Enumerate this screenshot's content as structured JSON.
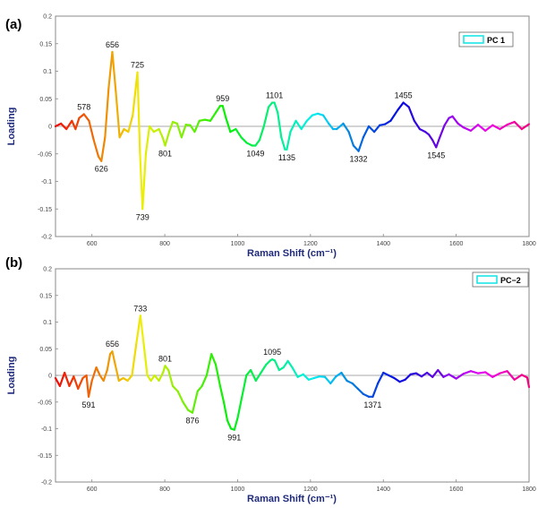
{
  "chart_data": [
    {
      "type": "line",
      "panel_label": "(a)",
      "legend": "PC 1",
      "xlabel": "Raman Shift (cm⁻¹)",
      "ylabel": "Loading",
      "xlim": [
        500,
        1800
      ],
      "ylim": [
        -0.2,
        0.2
      ],
      "xticks": [
        600,
        800,
        1000,
        1200,
        1400,
        1600,
        1800
      ],
      "xtick_labels": [
        "600",
        "800",
        "1000",
        "1200",
        "1400",
        "1600",
        "1800"
      ],
      "yticks": [
        0.2,
        0.15,
        0.1,
        0.05,
        0,
        -0.05,
        -0.1,
        -0.15,
        -0.2
      ],
      "ytick_labels": [
        "0.2",
        "0.15",
        "0.1",
        "0.05",
        "0",
        "-0.05",
        "-0.1",
        "-0.15",
        "-0.2"
      ],
      "series": [
        {
          "x": [
            500,
            515,
            530,
            545,
            555,
            565,
            578,
            592,
            605,
            618,
            626,
            636,
            646,
            656,
            666,
            676,
            688,
            700,
            712,
            725,
            732,
            739,
            748,
            758,
            770,
            784,
            794,
            801,
            812,
            822,
            834,
            846,
            858,
            870,
            882,
            895,
            910,
            925,
            940,
            952,
            959,
            968,
            980,
            995,
            1010,
            1025,
            1040,
            1049,
            1060,
            1072,
            1085,
            1095,
            1101,
            1110,
            1120,
            1130,
            1135,
            1145,
            1160,
            1175,
            1190,
            1205,
            1220,
            1235,
            1250,
            1262,
            1272,
            1290,
            1305,
            1318,
            1332,
            1345,
            1360,
            1375,
            1390,
            1405,
            1420,
            1440,
            1455,
            1470,
            1485,
            1500,
            1515,
            1525,
            1535,
            1545,
            1555,
            1568,
            1580,
            1590,
            1605,
            1620,
            1640,
            1660,
            1680,
            1700,
            1720,
            1740,
            1760,
            1780,
            1800
          ],
          "y": [
            0,
            0.005,
            -0.005,
            0.01,
            -0.005,
            0.015,
            0.022,
            0.01,
            -0.025,
            -0.055,
            -0.063,
            -0.02,
            0.07,
            0.135,
            0.06,
            -0.02,
            -0.005,
            -0.01,
            0.02,
            0.098,
            -0.05,
            -0.15,
            -0.05,
            0,
            -0.01,
            -0.005,
            -0.02,
            -0.035,
            -0.01,
            0.008,
            0.005,
            -0.02,
            0.003,
            0.002,
            -0.01,
            0.01,
            0.012,
            0.01,
            0.025,
            0.037,
            0.037,
            0.015,
            -0.01,
            -0.005,
            -0.02,
            -0.03,
            -0.035,
            -0.035,
            -0.025,
            0,
            0.035,
            0.043,
            0.043,
            0.025,
            -0.02,
            -0.042,
            -0.042,
            -0.01,
            0.01,
            -0.005,
            0.01,
            0.02,
            0.023,
            0.02,
            0.005,
            -0.005,
            -0.005,
            0.005,
            -0.01,
            -0.035,
            -0.045,
            -0.02,
            0,
            -0.01,
            0.002,
            0.004,
            0.01,
            0.03,
            0.043,
            0.035,
            0.01,
            -0.005,
            -0.01,
            -0.015,
            -0.025,
            -0.038,
            -0.02,
            0.002,
            0.015,
            0.018,
            0.005,
            -0.002,
            -0.008,
            0.003,
            -0.008,
            0.002,
            -0.005,
            0.003,
            0.008,
            -0.005,
            0.004
          ]
        }
      ],
      "annotations": [
        {
          "text": "578",
          "x": 578,
          "y": 0.022
        },
        {
          "text": "626",
          "x": 626,
          "y": -0.063
        },
        {
          "text": "656",
          "x": 656,
          "y": 0.135
        },
        {
          "text": "725",
          "x": 725,
          "y": 0.098
        },
        {
          "text": "739",
          "x": 739,
          "y": -0.15
        },
        {
          "text": "801",
          "x": 801,
          "y": -0.035
        },
        {
          "text": "959",
          "x": 959,
          "y": 0.037
        },
        {
          "text": "1049",
          "x": 1049,
          "y": -0.035
        },
        {
          "text": "1101",
          "x": 1101,
          "y": 0.043
        },
        {
          "text": "1135",
          "x": 1135,
          "y": -0.042
        },
        {
          "text": "1332",
          "x": 1332,
          "y": -0.045
        },
        {
          "text": "1455",
          "x": 1455,
          "y": 0.043
        },
        {
          "text": "1545",
          "x": 1545,
          "y": -0.038
        }
      ],
      "grid": false
    },
    {
      "type": "line",
      "panel_label": "(b)",
      "legend": "PC−2",
      "xlabel": "Raman Shift (cm⁻¹)",
      "ylabel": "Loading",
      "xlim": [
        500,
        1800
      ],
      "ylim": [
        -0.2,
        0.2
      ],
      "xticks": [
        600,
        800,
        1000,
        1200,
        1400,
        1600,
        1800
      ],
      "xtick_labels": [
        "600",
        "800",
        "1000",
        "1200",
        "1400",
        "1600",
        "1800"
      ],
      "yticks": [
        0.2,
        0.15,
        0.1,
        0.05,
        0,
        -0.05,
        -0.1,
        -0.15,
        -0.2
      ],
      "ytick_labels": [
        "0.2",
        "0.15",
        "0.1",
        "0.05",
        "0",
        "-0.05",
        "-0.1",
        "-0.15",
        "-0.2"
      ],
      "series": [
        {
          "x": [
            500,
            512,
            525,
            538,
            550,
            562,
            575,
            585,
            591,
            600,
            612,
            622,
            632,
            642,
            650,
            656,
            664,
            674,
            686,
            698,
            710,
            722,
            733,
            742,
            752,
            762,
            772,
            784,
            795,
            801,
            810,
            822,
            836,
            850,
            864,
            876,
            890,
            902,
            915,
            928,
            940,
            952,
            962,
            972,
            982,
            991,
            1000,
            1012,
            1024,
            1036,
            1050,
            1064,
            1078,
            1090,
            1095,
            1102,
            1114,
            1126,
            1138,
            1150,
            1165,
            1180,
            1195,
            1210,
            1225,
            1240,
            1255,
            1270,
            1285,
            1300,
            1315,
            1330,
            1345,
            1360,
            1371,
            1385,
            1400,
            1415,
            1430,
            1445,
            1460,
            1475,
            1490,
            1505,
            1520,
            1535,
            1550,
            1565,
            1580,
            1600,
            1620,
            1640,
            1660,
            1680,
            1700,
            1720,
            1740,
            1760,
            1780,
            1795,
            1800
          ],
          "y": [
            -0.005,
            -0.02,
            0.005,
            -0.02,
            -0.002,
            -0.025,
            -0.005,
            0,
            -0.04,
            -0.01,
            0.015,
            0,
            -0.01,
            0.01,
            0.04,
            0.045,
            0.02,
            -0.01,
            -0.005,
            -0.01,
            0,
            0.06,
            0.112,
            0.06,
            0,
            -0.01,
            0,
            -0.01,
            0.005,
            0.018,
            0.01,
            -0.02,
            -0.03,
            -0.05,
            -0.065,
            -0.07,
            -0.03,
            -0.02,
            0,
            0.04,
            0.02,
            -0.02,
            -0.05,
            -0.085,
            -0.1,
            -0.102,
            -0.08,
            -0.04,
            0,
            0.01,
            -0.01,
            0.005,
            0.02,
            0.028,
            0.03,
            0.028,
            0.01,
            0.015,
            0.027,
            0.015,
            -0.003,
            0.002,
            -0.008,
            -0.005,
            -0.002,
            -0.003,
            -0.015,
            -0.002,
            0.005,
            -0.01,
            -0.015,
            -0.025,
            -0.035,
            -0.04,
            -0.04,
            -0.015,
            0.005,
            0,
            -0.005,
            -0.012,
            -0.008,
            0.002,
            0.004,
            -0.002,
            0.005,
            -0.003,
            0.01,
            -0.003,
            0.002,
            -0.006,
            0.003,
            0.008,
            0.004,
            0.006,
            -0.003,
            0.004,
            0.008,
            -0.008,
            0.001,
            -0.004,
            -0.022
          ]
        }
      ],
      "annotations": [
        {
          "text": "591",
          "x": 591,
          "y": -0.04
        },
        {
          "text": "656",
          "x": 656,
          "y": 0.045
        },
        {
          "text": "733",
          "x": 733,
          "y": 0.112
        },
        {
          "text": "801",
          "x": 801,
          "y": 0.018
        },
        {
          "text": "876",
          "x": 876,
          "y": -0.07
        },
        {
          "text": "991",
          "x": 991,
          "y": -0.102
        },
        {
          "text": "1095",
          "x": 1095,
          "y": 0.03
        },
        {
          "text": "1371",
          "x": 1371,
          "y": -0.04
        }
      ],
      "grid": false
    }
  ],
  "colors": {
    "axis": "#888888",
    "zero_line": "#aaaaaa",
    "axis_label": "#1f2a7a",
    "legend_swatch": "#19e6e6"
  }
}
